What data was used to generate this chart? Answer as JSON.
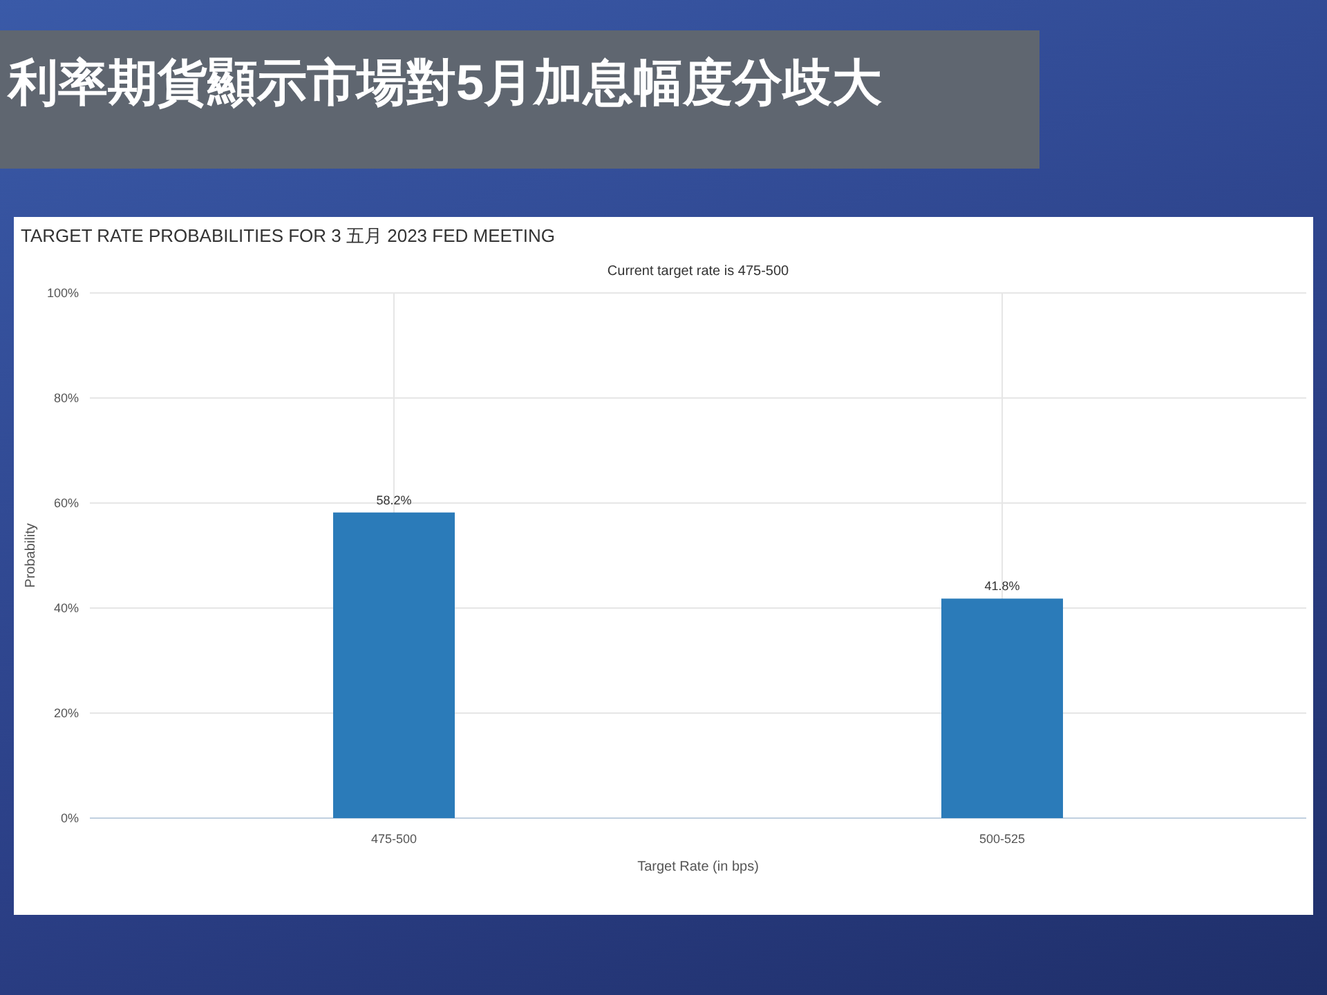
{
  "chart_data": {
    "type": "bar",
    "title": "利率期貨顯示市場對5月加息幅度分歧大",
    "subtitle": "TARGET RATE PROBABILITIES FOR 3 五月 2023 FED MEETING",
    "annotations": [
      "Current target rate is 475-500"
    ],
    "xlabel": "Target Rate (in bps)",
    "ylabel": "Probability",
    "categories": [
      "475-500",
      "500-525"
    ],
    "values": [
      58.2,
      41.8
    ],
    "value_labels": [
      "58.2%",
      "41.8%"
    ],
    "color": "#2b7bb9",
    "ylim": [
      0,
      100
    ],
    "yticks": [
      {
        "value": 0,
        "label": "0%"
      },
      {
        "value": 20,
        "label": "20%"
      },
      {
        "value": 40,
        "label": "40%"
      },
      {
        "value": 60,
        "label": "60%"
      },
      {
        "value": 80,
        "label": "80%"
      },
      {
        "value": 100,
        "label": "100%"
      }
    ],
    "grid": true
  }
}
